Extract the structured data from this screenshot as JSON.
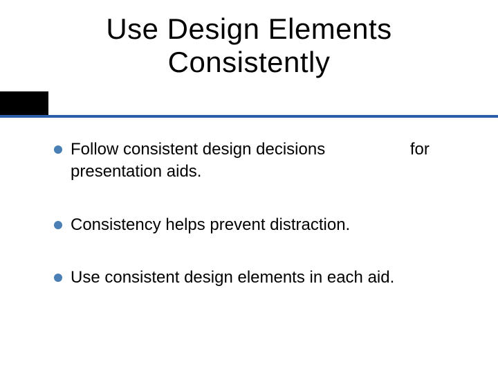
{
  "slide": {
    "title_line1": "Use Design Elements",
    "title_line2": "Consistently",
    "bullets": [
      {
        "part_a": "Follow consistent design decisions",
        "part_b": "for",
        "wrap": "presentation aids."
      },
      {
        "text": "Consistency helps prevent distraction."
      },
      {
        "text": "Use consistent design elements in each aid."
      }
    ]
  },
  "style": {
    "background_color": "#ffffff",
    "title_color": "#000000",
    "title_fontsize": 42,
    "body_color": "#000000",
    "body_fontsize": 24,
    "bullet_color": "#4a7fb5",
    "divider_box_color": "#000000",
    "divider_line_color": "#2a5ea8",
    "font_family": "Arial"
  }
}
